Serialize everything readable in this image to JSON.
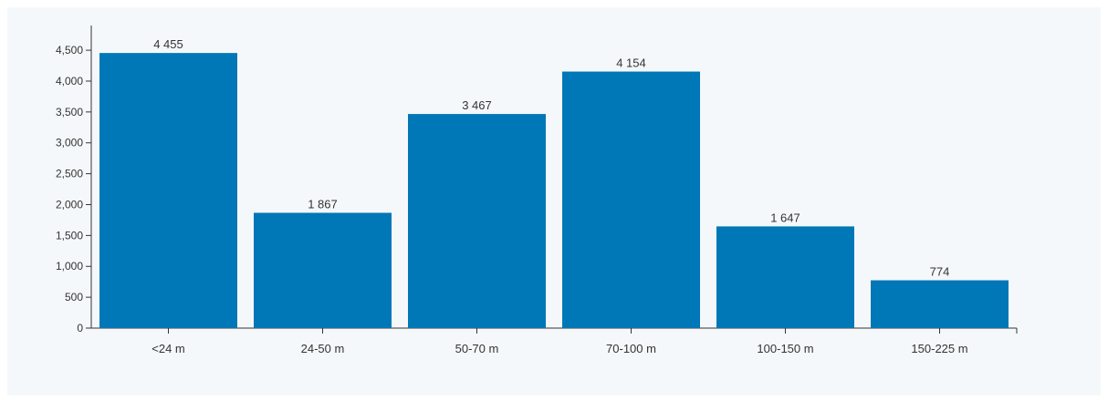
{
  "chart_data": {
    "type": "bar",
    "categories": [
      "<24 m",
      "24-50 m",
      "50-70 m",
      "70-100 m",
      "100-150 m",
      "150-225 m"
    ],
    "values": [
      4455,
      1867,
      3467,
      4154,
      1647,
      774
    ],
    "value_labels": [
      "4 455",
      "1 867",
      "3 467",
      "4 154",
      "1 647",
      "774"
    ],
    "yticks": [
      0,
      500,
      1000,
      1500,
      2000,
      2500,
      3000,
      3500,
      4000,
      4500
    ],
    "ytick_labels": [
      "0",
      "500",
      "1,000",
      "1,500",
      "2,000",
      "2,500",
      "3,000",
      "3,500",
      "4,000",
      "4,500"
    ],
    "ylim": [
      0,
      4900
    ],
    "title": "",
    "xlabel": "",
    "ylabel": "",
    "grid": false,
    "bar_color": "#0077b6"
  }
}
